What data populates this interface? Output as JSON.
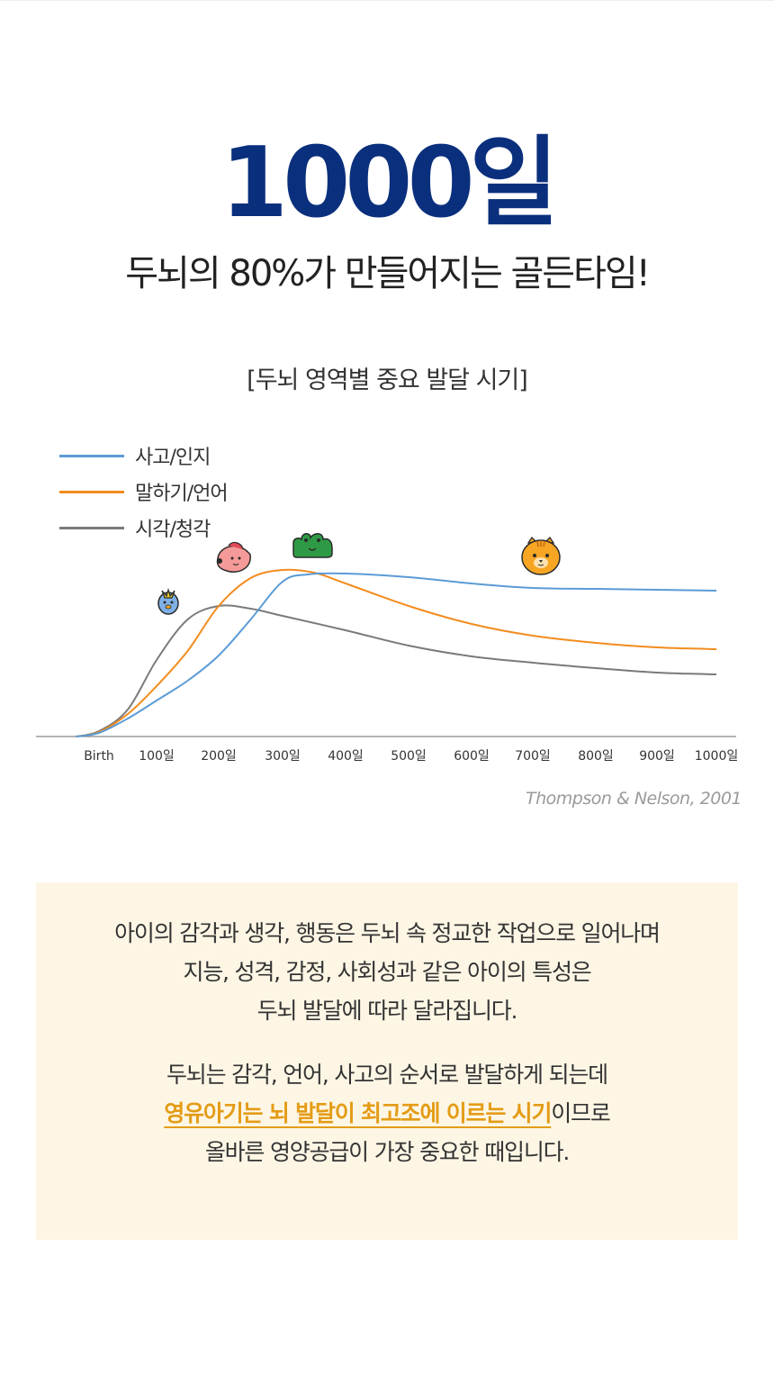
{
  "hero": {
    "title": "1000일",
    "subtitle": "두뇌의 80%가 만들어지는 골든타임!"
  },
  "chart_section": {
    "caption": "[두뇌 영역별 중요 발달 시기]",
    "source": "Thompson & Nelson, 2001"
  },
  "chart_data": {
    "type": "line",
    "title": "[두뇌 영역별 중요 발달 시기]",
    "x_tick_labels": [
      "Birth",
      "100일",
      "200일",
      "300일",
      "400일",
      "500일",
      "600일",
      "700일",
      "800일",
      "900일",
      "1000일"
    ],
    "x_unit": "days",
    "y_axis_labeled": false,
    "grid": false,
    "legend_position": "top-left",
    "series": [
      {
        "name": "사고/인지",
        "color": "#5b9bd5",
        "points": [
          [
            -40,
            0
          ],
          [
            0,
            4
          ],
          [
            50,
            20
          ],
          [
            100,
            40
          ],
          [
            150,
            62
          ],
          [
            200,
            90
          ],
          [
            250,
            130
          ],
          [
            300,
            172
          ],
          [
            340,
            180
          ],
          [
            400,
            181
          ],
          [
            500,
            177
          ],
          [
            600,
            170
          ],
          [
            700,
            165
          ],
          [
            800,
            164
          ],
          [
            900,
            163
          ],
          [
            1000,
            162
          ]
        ]
      },
      {
        "name": "말하기/언어",
        "color": "#f28c1e",
        "points": [
          [
            -40,
            0
          ],
          [
            0,
            5
          ],
          [
            50,
            25
          ],
          [
            100,
            56
          ],
          [
            150,
            95
          ],
          [
            200,
            145
          ],
          [
            250,
            176
          ],
          [
            300,
            185
          ],
          [
            350,
            182
          ],
          [
            400,
            170
          ],
          [
            500,
            145
          ],
          [
            600,
            125
          ],
          [
            700,
            112
          ],
          [
            800,
            104
          ],
          [
            900,
            99
          ],
          [
            1000,
            97
          ]
        ]
      },
      {
        "name": "시각/청각",
        "color": "#7a7a7a",
        "points": [
          [
            -40,
            0
          ],
          [
            0,
            6
          ],
          [
            50,
            30
          ],
          [
            100,
            85
          ],
          [
            150,
            130
          ],
          [
            200,
            145
          ],
          [
            250,
            142
          ],
          [
            300,
            134
          ],
          [
            400,
            118
          ],
          [
            500,
            101
          ],
          [
            600,
            89
          ],
          [
            700,
            82
          ],
          [
            800,
            76
          ],
          [
            900,
            71
          ],
          [
            1000,
            69
          ]
        ]
      }
    ]
  },
  "characters": [
    {
      "icon": "blue-bird-character-icon",
      "series": "시각/청각"
    },
    {
      "icon": "pink-fish-character-icon",
      "series": "말하기/언어"
    },
    {
      "icon": "green-crocodile-character-icon",
      "series": "사고/인지"
    },
    {
      "icon": "orange-tiger-character-icon",
      "series": "사고/인지"
    }
  ],
  "info": {
    "para1": [
      "아이의 감각과 생각, 행동은 두뇌 속 정교한 작업으로 일어나며",
      "지능, 성격, 감정, 사회성과 같은 아이의 특성은",
      "두뇌 발달에 따라 달라집니다."
    ],
    "para2_line1": "두뇌는 감각, 언어, 사고의 순서로 발달하게 되는데",
    "para2_highlight": "영유아기는 뇌 발달이 최고조에 이르는 시기",
    "para2_line2_rest": "이므로",
    "para2_line3": "올바른 영양공급이 가장 중요한 때입니다."
  },
  "colors": {
    "title": "#0a2f7d",
    "highlight": "#e49c16",
    "box_bg": "#fdf6e5"
  }
}
